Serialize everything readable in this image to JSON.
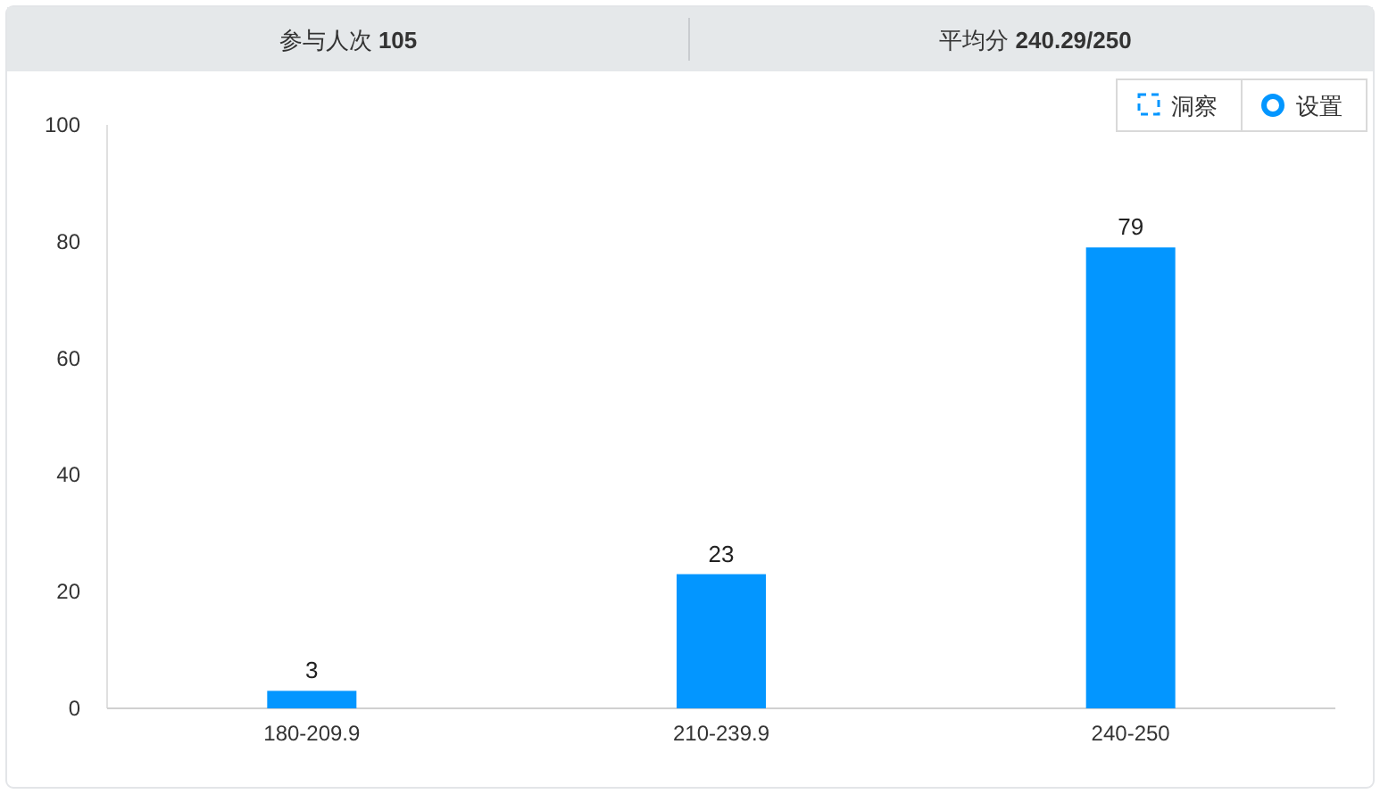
{
  "chart_data": {
    "type": "bar",
    "annotations": [
      "参与人次 105",
      "平均分 240.29/250",
      "洞察",
      "设置"
    ],
    "categories": [
      "180-209.9",
      "210-239.9",
      "240-250"
    ],
    "values": [
      3,
      23,
      79
    ],
    "color": "#0396ff",
    "ylim": [
      0,
      100
    ],
    "yticks": [
      0,
      20,
      40,
      60,
      80,
      100
    ],
    "data_labels": true
  }
}
